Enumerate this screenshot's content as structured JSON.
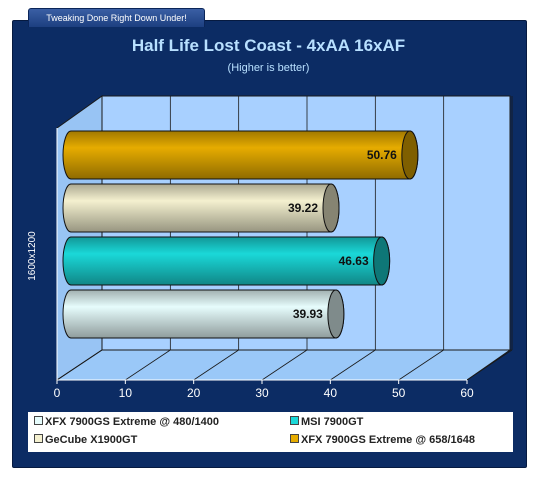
{
  "header": {
    "tab_text": "Tweaking Done Right Down Under!"
  },
  "chart_data": {
    "type": "bar",
    "orientation": "horizontal",
    "title": "Half Life Lost Coast - 4xAA 16xAF",
    "subtitle": "(Higher is better)",
    "categories": [
      "1600x1200"
    ],
    "ylabel": "1600x1200",
    "xlim": [
      0,
      60
    ],
    "xticks": [
      "0",
      "10",
      "20",
      "30",
      "40",
      "50",
      "60"
    ],
    "grid": true,
    "legend_position": "bottom",
    "series": [
      {
        "name": "XFX 7900GS Extreme @ 480/1400",
        "value": 39.93,
        "label": "39.93",
        "color": "#e6fcfc"
      },
      {
        "name": "MSI 7900GT",
        "value": 46.63,
        "label": "46.63",
        "color": "#1ad8d8"
      },
      {
        "name": "GeCube X1900GT",
        "value": 39.22,
        "label": "39.22",
        "color": "#f4f0cf"
      },
      {
        "name": "XFX 7900GS Extreme @ 658/1648",
        "value": 50.76,
        "label": "50.76",
        "color": "#e6ac00"
      }
    ]
  }
}
